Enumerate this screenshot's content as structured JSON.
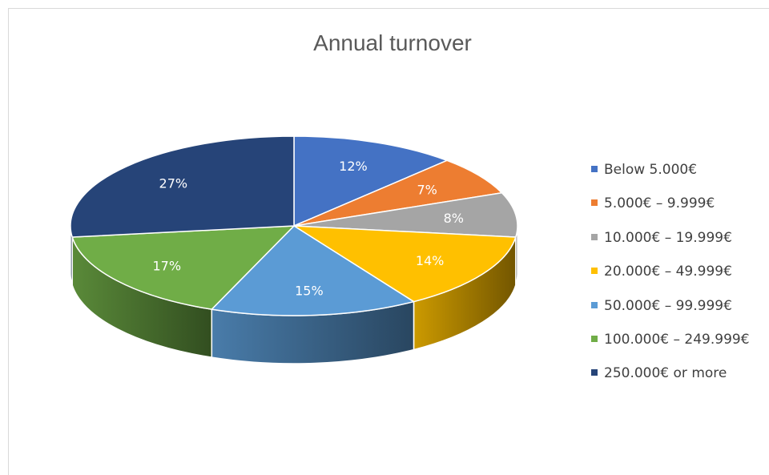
{
  "chart_data": {
    "type": "pie",
    "title": "Annual turnover",
    "categories": [
      "Below 5.000€",
      "5.000€ – 9.999€",
      "10.000€ – 19.999€",
      "20.000€ – 49.999€",
      "50.000€ – 99.999€",
      "100.000€ – 249.999€",
      "250.000€ or more"
    ],
    "values": [
      12,
      7,
      8,
      14,
      15,
      17,
      27
    ],
    "data_labels": [
      "12%",
      "7%",
      "8%",
      "14%",
      "15%",
      "17%",
      "27%"
    ],
    "colors": [
      "#4472c4",
      "#ed7d31",
      "#a5a5a5",
      "#ffc000",
      "#5b9bd5",
      "#70ad47",
      "#264478"
    ],
    "style": "3d-pie",
    "legend_position": "right"
  }
}
